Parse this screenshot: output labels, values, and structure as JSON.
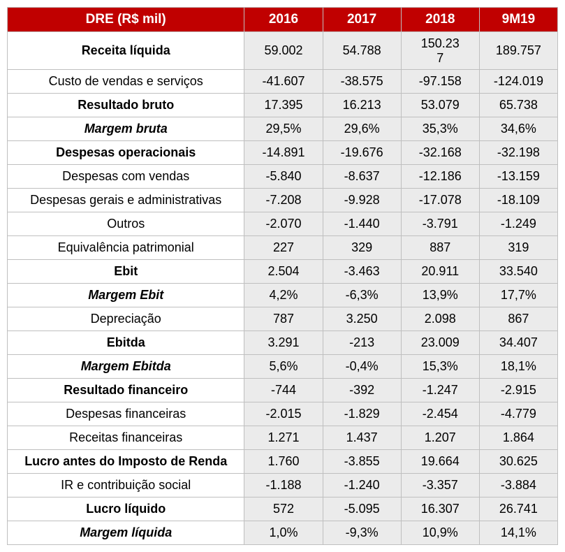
{
  "table": {
    "header_bg": "#c00000",
    "header_text_color": "#ffffff",
    "value_bg": "#ebebeb",
    "label_bg": "#ffffff",
    "border_color": "#bfbfbf",
    "columns": [
      "DRE (R$ mil)",
      "2016",
      "2017",
      "2018",
      "9M19"
    ],
    "rows": [
      {
        "style": "bold",
        "label": "Receita líquida",
        "values": [
          "59.002",
          "54.788",
          "150.237",
          "189.757"
        ],
        "wrap_col": 3
      },
      {
        "style": "normal",
        "label": "Custo de vendas e serviços",
        "values": [
          "-41.607",
          "-38.575",
          "-97.158",
          "-124.019"
        ]
      },
      {
        "style": "bold",
        "label": "Resultado bruto",
        "values": [
          "17.395",
          "16.213",
          "53.079",
          "65.738"
        ]
      },
      {
        "style": "bold-italic",
        "label": "Margem bruta",
        "values": [
          "29,5%",
          "29,6%",
          "35,3%",
          "34,6%"
        ]
      },
      {
        "style": "bold",
        "label": "Despesas operacionais",
        "values": [
          "-14.891",
          "-19.676",
          "-32.168",
          "-32.198"
        ]
      },
      {
        "style": "normal",
        "label": "Despesas com vendas",
        "values": [
          "-5.840",
          "-8.637",
          "-12.186",
          "-13.159"
        ]
      },
      {
        "style": "normal",
        "label": "Despesas gerais e administrativas",
        "values": [
          "-7.208",
          "-9.928",
          "-17.078",
          "-18.109"
        ]
      },
      {
        "style": "normal",
        "label": "Outros",
        "values": [
          "-2.070",
          "-1.440",
          "-3.791",
          "-1.249"
        ]
      },
      {
        "style": "normal",
        "label": "Equivalência patrimonial",
        "values": [
          "227",
          "329",
          "887",
          "319"
        ]
      },
      {
        "style": "bold",
        "label": "Ebit",
        "values": [
          "2.504",
          "-3.463",
          "20.911",
          "33.540"
        ]
      },
      {
        "style": "bold-italic",
        "label": "Margem Ebit",
        "values": [
          "4,2%",
          "-6,3%",
          "13,9%",
          "17,7%"
        ]
      },
      {
        "style": "normal",
        "label": "Depreciação",
        "values": [
          "787",
          "3.250",
          "2.098",
          "867"
        ]
      },
      {
        "style": "bold",
        "label": "Ebitda",
        "values": [
          "3.291",
          "-213",
          "23.009",
          "34.407"
        ]
      },
      {
        "style": "bold-italic",
        "label": "Margem Ebitda",
        "values": [
          "5,6%",
          "-0,4%",
          "15,3%",
          "18,1%"
        ]
      },
      {
        "style": "bold",
        "label": "Resultado financeiro",
        "values": [
          "-744",
          "-392",
          "-1.247",
          "-2.915"
        ]
      },
      {
        "style": "normal",
        "label": "Despesas financeiras",
        "values": [
          "-2.015",
          "-1.829",
          "-2.454",
          "-4.779"
        ]
      },
      {
        "style": "normal",
        "label": "Receitas financeiras",
        "values": [
          "1.271",
          "1.437",
          "1.207",
          "1.864"
        ]
      },
      {
        "style": "bold",
        "label": "Lucro antes do Imposto de Renda",
        "values": [
          "1.760",
          "-3.855",
          "19.664",
          "30.625"
        ]
      },
      {
        "style": "normal",
        "label": "IR e contribuição social",
        "values": [
          "-1.188",
          "-1.240",
          "-3.357",
          "-3.884"
        ]
      },
      {
        "style": "bold",
        "label": "Lucro líquido",
        "values": [
          "572",
          "-5.095",
          "16.307",
          "26.741"
        ]
      },
      {
        "style": "bold-italic",
        "label": "Margem líquida",
        "values": [
          "1,0%",
          "-9,3%",
          "10,9%",
          "14,1%"
        ]
      }
    ]
  }
}
